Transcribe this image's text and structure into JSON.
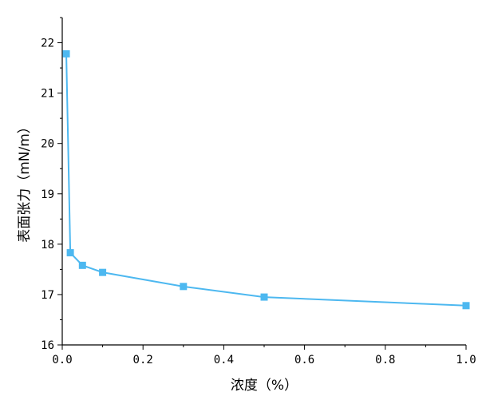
{
  "chart_data": {
    "type": "line",
    "title": "",
    "xlabel": "浓度（%）",
    "ylabel": "表面张力（mN/m）",
    "xlim": [
      0.0,
      1.0
    ],
    "ylim": [
      16,
      22.5
    ],
    "x_ticks": [
      0.0,
      0.2,
      0.4,
      0.6,
      0.8,
      1.0
    ],
    "x_tick_labels": [
      "0.0",
      "0.2",
      "0.4",
      "0.6",
      "0.8",
      "1.0"
    ],
    "y_ticks": [
      16,
      17,
      18,
      19,
      20,
      21,
      22
    ],
    "y_tick_labels": [
      "16",
      "17",
      "18",
      "19",
      "20",
      "21",
      "22"
    ],
    "grid": false,
    "legend": "none",
    "series": [
      {
        "color": "#4db8f0",
        "marker": "square",
        "x": [
          0.01,
          0.02,
          0.05,
          0.1,
          0.3,
          0.5,
          1.0
        ],
        "y": [
          21.78,
          17.83,
          17.58,
          17.44,
          17.16,
          16.95,
          16.78
        ]
      }
    ]
  }
}
